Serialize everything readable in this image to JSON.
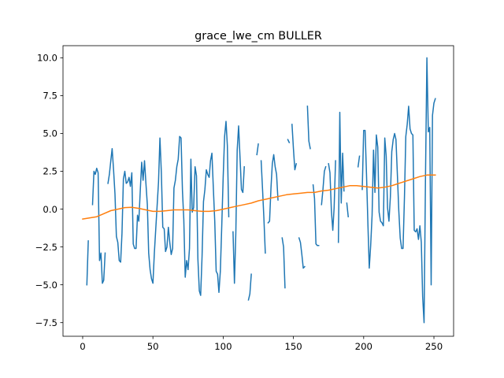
{
  "chart_data": {
    "type": "line",
    "title": "grace_lwe_cm BULLER",
    "xlabel": "",
    "ylabel": "",
    "xlim": [
      -14,
      264
    ],
    "ylim": [
      -8.4,
      10.8
    ],
    "xticks": [
      0,
      50,
      100,
      150,
      200,
      250
    ],
    "xtick_labels": [
      "0",
      "50",
      "100",
      "150",
      "200",
      "250"
    ],
    "yticks": [
      -7.5,
      -5.0,
      -2.5,
      0.0,
      2.5,
      5.0,
      7.5,
      10.0
    ],
    "ytick_labels": [
      "−7.5",
      "−5.0",
      "−2.5",
      "0.0",
      "2.5",
      "5.0",
      "7.5",
      "10.0"
    ],
    "grid": false,
    "legend": "none",
    "series": [
      {
        "color": "#1f77b4",
        "points": [
          [
            3,
            -5.0
          ],
          [
            4,
            -2.1
          ],
          null,
          [
            7,
            0.3
          ],
          [
            8,
            2.5
          ],
          [
            9,
            2.3
          ],
          [
            10,
            2.7
          ],
          [
            11,
            2.4
          ],
          [
            12,
            -3.4
          ],
          [
            13,
            -2.9
          ],
          [
            14,
            -4.9
          ],
          [
            15,
            -4.7
          ],
          [
            16,
            -2.9
          ],
          null,
          [
            18,
            1.7
          ],
          [
            19,
            2.3
          ],
          [
            20,
            3.2
          ],
          [
            21,
            4.0
          ],
          [
            22,
            2.6
          ],
          [
            23,
            1.0
          ],
          [
            24,
            -1.8
          ],
          [
            25,
            -2.2
          ],
          [
            26,
            -3.4
          ],
          [
            27,
            -3.5
          ],
          [
            28,
            -1.6
          ],
          [
            29,
            2.0
          ],
          [
            30,
            2.5
          ],
          [
            31,
            1.7
          ],
          [
            32,
            1.8
          ],
          [
            33,
            2.1
          ],
          [
            34,
            1.5
          ],
          [
            35,
            2.4
          ],
          [
            36,
            -2.3
          ],
          [
            37,
            -2.6
          ],
          [
            38,
            -2.6
          ],
          [
            39,
            -0.4
          ],
          [
            40,
            -0.8
          ],
          [
            41,
            1.2
          ],
          [
            42,
            3.1
          ],
          [
            43,
            1.9
          ],
          [
            44,
            3.2
          ],
          [
            45,
            1.7
          ],
          [
            46,
            0.3
          ],
          [
            47,
            -2.9
          ],
          [
            48,
            -4.0
          ],
          [
            49,
            -4.6
          ],
          [
            50,
            -4.9
          ],
          [
            51,
            -2.9
          ],
          [
            52,
            -1.3
          ],
          [
            53,
            0.2
          ],
          [
            54,
            1.8
          ],
          [
            55,
            4.7
          ],
          [
            56,
            2.4
          ],
          [
            57,
            -1.2
          ],
          [
            58,
            -1.3
          ],
          [
            59,
            -2.8
          ],
          [
            60,
            -2.5
          ],
          [
            61,
            -1.2
          ],
          [
            62,
            -2.2
          ],
          [
            63,
            -3.0
          ],
          [
            64,
            -2.6
          ],
          [
            65,
            1.4
          ],
          [
            66,
            1.9
          ],
          [
            67,
            2.8
          ],
          [
            68,
            3.3
          ],
          [
            69,
            4.8
          ],
          [
            70,
            4.7
          ],
          [
            71,
            1.2
          ],
          [
            72,
            -0.7
          ],
          [
            73,
            -4.5
          ],
          [
            74,
            -3.4
          ],
          [
            75,
            -4.0
          ],
          [
            76,
            -2.6
          ],
          [
            77,
            3.3
          ],
          [
            78,
            -0.2
          ],
          [
            79,
            0.1
          ],
          [
            80,
            2.8
          ],
          [
            81,
            2.2
          ],
          [
            82,
            -3.3
          ],
          [
            83,
            -5.4
          ],
          [
            84,
            -5.7
          ],
          [
            85,
            -3.1
          ],
          [
            86,
            0.5
          ],
          [
            87,
            1.3
          ],
          [
            88,
            2.6
          ],
          [
            89,
            2.3
          ],
          [
            90,
            2.1
          ],
          [
            91,
            3.2
          ],
          [
            92,
            3.7
          ],
          [
            93,
            1.4
          ],
          [
            94,
            -0.8
          ],
          [
            95,
            -4.1
          ],
          [
            96,
            -4.3
          ],
          [
            97,
            -5.5
          ],
          [
            98,
            -4.1
          ],
          [
            99,
            -1.1
          ],
          [
            100,
            2.1
          ],
          [
            101,
            4.8
          ],
          [
            102,
            5.8
          ],
          [
            103,
            4.2
          ],
          [
            104,
            -0.5
          ],
          null,
          [
            107,
            -1.5
          ],
          [
            108,
            -4.9
          ],
          [
            109,
            -1.5
          ],
          [
            110,
            3.9
          ],
          [
            111,
            5.5
          ],
          [
            112,
            3.4
          ],
          [
            113,
            1.3
          ],
          [
            114,
            1.1
          ],
          [
            115,
            2.8
          ],
          null,
          [
            118,
            -6.0
          ],
          [
            119,
            -5.6
          ],
          [
            120,
            -4.3
          ],
          null,
          [
            124,
            3.6
          ],
          [
            125,
            4.3
          ],
          null,
          [
            127,
            3.2
          ],
          [
            128,
            1.3
          ],
          [
            129,
            -0.6
          ],
          [
            130,
            -2.9
          ],
          null,
          [
            132,
            -0.9
          ],
          [
            133,
            -0.8
          ],
          [
            134,
            1.4
          ],
          [
            135,
            3.0
          ],
          [
            136,
            3.6
          ],
          [
            137,
            2.8
          ],
          [
            138,
            2.3
          ],
          [
            139,
            0.6
          ],
          null,
          [
            142,
            -1.9
          ],
          [
            143,
            -2.5
          ],
          [
            144,
            -5.2
          ],
          null,
          [
            146,
            4.6
          ],
          [
            147,
            4.4
          ],
          null,
          [
            149,
            5.6
          ],
          [
            150,
            4.0
          ],
          [
            151,
            2.6
          ],
          [
            152,
            3.0
          ],
          null,
          [
            154,
            -1.9
          ],
          [
            155,
            -2.2
          ],
          [
            156,
            -3.0
          ],
          [
            157,
            -3.9
          ],
          [
            158,
            -3.8
          ],
          null,
          [
            160,
            6.8
          ],
          [
            161,
            4.5
          ],
          [
            162,
            4.0
          ],
          null,
          [
            164,
            1.6
          ],
          [
            165,
            0.7
          ],
          [
            166,
            -2.3
          ],
          [
            167,
            -2.4
          ],
          [
            168,
            -2.4
          ],
          null,
          [
            170,
            0.3
          ],
          [
            171,
            1.3
          ],
          [
            172,
            2.5
          ],
          [
            173,
            2.8
          ],
          null,
          [
            175,
            3.0
          ],
          [
            176,
            2.4
          ],
          [
            177,
            -0.1
          ],
          [
            178,
            -1.4
          ],
          [
            179,
            0.1
          ],
          [
            180,
            3.2
          ],
          null,
          [
            182,
            -2.2
          ],
          [
            183,
            6.4
          ],
          [
            184,
            0.4
          ],
          [
            185,
            3.7
          ],
          [
            186,
            1.2
          ],
          null,
          [
            188,
            0.4
          ],
          [
            189,
            -0.5
          ],
          null,
          [
            196,
            2.8
          ],
          [
            197,
            3.5
          ],
          null,
          [
            199,
            1.3
          ],
          [
            200,
            5.2
          ],
          [
            201,
            5.2
          ],
          [
            202,
            2.3
          ],
          [
            203,
            -1.0
          ],
          [
            204,
            -3.9
          ],
          [
            205,
            -2.4
          ],
          [
            206,
            -0.4
          ],
          [
            207,
            3.9
          ],
          [
            208,
            1.1
          ],
          [
            209,
            4.9
          ],
          [
            210,
            4.1
          ],
          [
            211,
            -0.2
          ],
          [
            212,
            -0.8
          ],
          [
            213,
            -0.9
          ],
          [
            214,
            -1.1
          ],
          [
            215,
            4.7
          ],
          [
            216,
            3.5
          ],
          [
            217,
            0.1
          ],
          [
            218,
            -0.8
          ],
          [
            219,
            0.8
          ],
          [
            220,
            3.8
          ],
          [
            221,
            4.6
          ],
          [
            222,
            5.0
          ],
          [
            223,
            4.6
          ],
          [
            224,
            2.3
          ],
          [
            225,
            -0.1
          ],
          [
            226,
            -1.9
          ],
          [
            227,
            -2.6
          ],
          [
            228,
            -2.6
          ],
          [
            229,
            0.8
          ],
          [
            230,
            4.8
          ],
          [
            231,
            5.6
          ],
          [
            232,
            6.8
          ],
          [
            233,
            5.3
          ],
          [
            234,
            5.0
          ],
          [
            235,
            4.9
          ],
          [
            236,
            -1.4
          ],
          [
            237,
            -1.5
          ],
          [
            238,
            -1.3
          ],
          [
            239,
            -2.0
          ],
          [
            240,
            -1.1
          ],
          [
            241,
            -2.2
          ],
          [
            242,
            -5.8
          ],
          [
            243,
            -7.5
          ],
          [
            244,
            2.1
          ],
          [
            245,
            10.0
          ],
          [
            246,
            5.1
          ],
          [
            247,
            5.4
          ],
          [
            248,
            -5.0
          ],
          [
            249,
            6.2
          ],
          [
            250,
            7.0
          ],
          [
            251,
            7.3
          ]
        ]
      },
      {
        "color": "#ff7f0e",
        "points": [
          [
            0,
            -0.65
          ],
          [
            10,
            -0.5
          ],
          [
            20,
            -0.1
          ],
          [
            25,
            0.0
          ],
          [
            30,
            0.1
          ],
          [
            35,
            0.12
          ],
          [
            40,
            0.05
          ],
          [
            45,
            -0.05
          ],
          [
            50,
            -0.15
          ],
          [
            55,
            -0.15
          ],
          [
            60,
            -0.1
          ],
          [
            65,
            -0.05
          ],
          [
            70,
            -0.05
          ],
          [
            75,
            -0.05
          ],
          [
            80,
            -0.1
          ],
          [
            85,
            -0.15
          ],
          [
            90,
            -0.15
          ],
          [
            95,
            -0.1
          ],
          [
            100,
            0.0
          ],
          [
            105,
            0.1
          ],
          [
            110,
            0.2
          ],
          [
            115,
            0.3
          ],
          [
            120,
            0.4
          ],
          [
            125,
            0.55
          ],
          [
            130,
            0.65
          ],
          [
            135,
            0.75
          ],
          [
            140,
            0.85
          ],
          [
            145,
            0.95
          ],
          [
            150,
            1.0
          ],
          [
            155,
            1.05
          ],
          [
            160,
            1.1
          ],
          [
            165,
            1.1
          ],
          [
            170,
            1.2
          ],
          [
            175,
            1.25
          ],
          [
            180,
            1.35
          ],
          [
            185,
            1.45
          ],
          [
            190,
            1.55
          ],
          [
            195,
            1.55
          ],
          [
            200,
            1.5
          ],
          [
            205,
            1.45
          ],
          [
            210,
            1.4
          ],
          [
            215,
            1.45
          ],
          [
            220,
            1.55
          ],
          [
            225,
            1.7
          ],
          [
            230,
            1.85
          ],
          [
            235,
            2.0
          ],
          [
            240,
            2.15
          ],
          [
            245,
            2.25
          ],
          [
            251,
            2.25
          ]
        ]
      }
    ]
  }
}
